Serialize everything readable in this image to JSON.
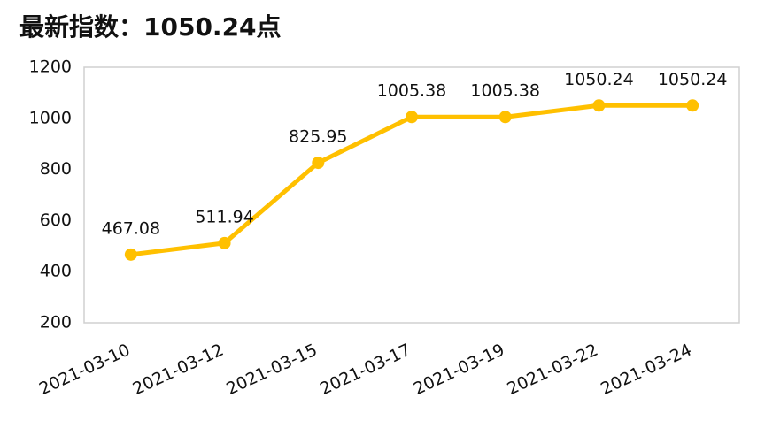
{
  "chart_data": {
    "type": "line",
    "title": "最新指数：1050.24点",
    "categories": [
      "2021-03-10",
      "2021-03-12",
      "2021-03-15",
      "2021-03-17",
      "2021-03-19",
      "2021-03-22",
      "2021-03-24"
    ],
    "series": [
      {
        "color": "#ffc000",
        "values": [
          467.08,
          511.94,
          825.95,
          1005.38,
          1005.38,
          1050.24,
          1050.24
        ]
      }
    ],
    "ylim": [
      200,
      1200
    ],
    "yticks": [
      200,
      400,
      600,
      800,
      1000,
      1200
    ],
    "grid": false
  }
}
